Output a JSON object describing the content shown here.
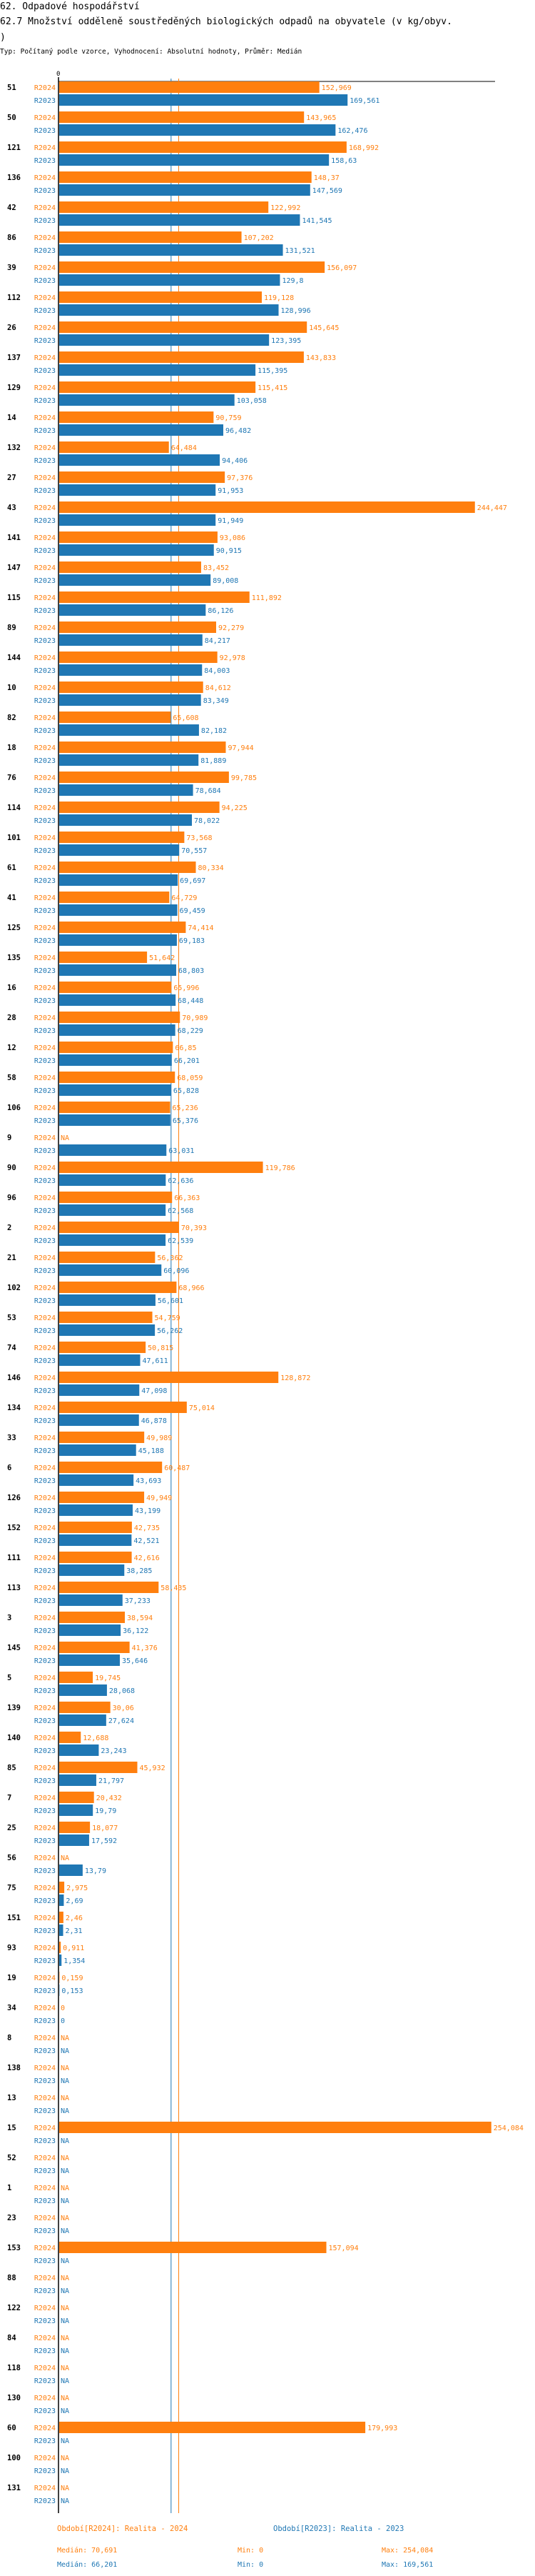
{
  "header": {
    "section": "62. Odpadové hospodářství",
    "title_line1": "62.7 Množství odděleně soustředěných biologických odpadů na obyvatele (v kg/obyv.",
    "title_line2": ")",
    "subtitle": "Typ: Počítaný podle vzorce, Vyhodnocení: Absolutní hodnoty, Průměr: Medián"
  },
  "colors": {
    "r2024": "#ff7f0e",
    "r2023": "#1f77b4"
  },
  "chart_data": {
    "type": "bar",
    "orientation": "horizontal",
    "axis_zero_label": "0",
    "series_labels": [
      "R2024",
      "R2023"
    ],
    "na_label": "NA",
    "categories": [
      "51",
      "50",
      "121",
      "136",
      "42",
      "86",
      "39",
      "112",
      "26",
      "137",
      "129",
      "14",
      "132",
      "27",
      "43",
      "141",
      "147",
      "115",
      "89",
      "144",
      "10",
      "82",
      "18",
      "76",
      "114",
      "101",
      "61",
      "41",
      "125",
      "135",
      "16",
      "28",
      "12",
      "58",
      "106",
      "9",
      "90",
      "96",
      "2",
      "21",
      "102",
      "53",
      "74",
      "146",
      "134",
      "33",
      "6",
      "126",
      "152",
      "111",
      "113",
      "3",
      "145",
      "5",
      "139",
      "140",
      "85",
      "7",
      "25",
      "56",
      "75",
      "151",
      "93",
      "19",
      "34",
      "8",
      "138",
      "13",
      "15",
      "52",
      "1",
      "23",
      "153",
      "88",
      "122",
      "84",
      "118",
      "130",
      "60",
      "100",
      "131"
    ],
    "series": [
      {
        "name": "R2024",
        "values": [
          "152,969",
          "143,965",
          "168,992",
          "148,37",
          "122,992",
          "107,202",
          "156,097",
          "119,128",
          "145,645",
          "143,833",
          "115,415",
          "90,759",
          "64,484",
          "97,376",
          "244,447",
          "93,086",
          "83,452",
          "111,892",
          "92,279",
          "92,978",
          "84,612",
          "65,608",
          "97,944",
          "99,785",
          "94,225",
          "73,568",
          "80,334",
          "64,729",
          "74,414",
          "51,642",
          "65,996",
          "70,989",
          "66,85",
          "68,059",
          "65,236",
          null,
          "119,786",
          "66,363",
          "70,393",
          "56,362",
          "68,966",
          "54,759",
          "50,815",
          "128,872",
          "75,014",
          "49,989",
          "60,487",
          "49,949",
          "42,735",
          "42,616",
          "58,435",
          "38,594",
          "41,376",
          "19,745",
          "30,06",
          "12,688",
          "45,932",
          "20,432",
          "18,077",
          null,
          "2,975",
          "2,46",
          "0,911",
          "0,159",
          "0",
          null,
          null,
          null,
          "254,084",
          null,
          null,
          null,
          "157,094",
          null,
          null,
          null,
          null,
          null,
          "179,993",
          null,
          null
        ]
      },
      {
        "name": "R2023",
        "values": [
          "169,561",
          "162,476",
          "158,63",
          "147,569",
          "141,545",
          "131,521",
          "129,8",
          "128,996",
          "123,395",
          "115,395",
          "103,058",
          "96,482",
          "94,406",
          "91,953",
          "91,949",
          "90,915",
          "89,008",
          "86,126",
          "84,217",
          "84,003",
          "83,349",
          "82,182",
          "81,889",
          "78,684",
          "78,022",
          "70,557",
          "69,697",
          "69,459",
          "69,183",
          "68,803",
          "68,448",
          "68,229",
          "66,201",
          "65,828",
          "65,376",
          "63,031",
          "62,636",
          "62,568",
          "62,539",
          "60,096",
          "56,601",
          "56,262",
          "47,611",
          "47,098",
          "46,878",
          "45,188",
          "43,693",
          "43,199",
          "42,521",
          "38,285",
          "37,233",
          "36,122",
          "35,646",
          "28,068",
          "27,624",
          "23,243",
          "21,797",
          "19,79",
          "17,592",
          "13,79",
          "2,69",
          "2,31",
          "1,354",
          "0,153",
          "0",
          null,
          null,
          null,
          null,
          null,
          null,
          null,
          null,
          null,
          null,
          null,
          null,
          null,
          null,
          null,
          null
        ]
      }
    ],
    "medians": {
      "R2024": 70.691,
      "R2023": 66.201
    },
    "xlim": [
      0,
      257
    ]
  },
  "legend": {
    "r2024": "Období[R2024]: Realita - 2024",
    "r2023": "Období[R2023]: Realita - 2023",
    "r2024_median": "Medián: 70,691",
    "r2024_min": "Min: 0",
    "r2024_max": "Max: 254,084",
    "r2023_median": "Medián: 66,201",
    "r2023_min": "Min: 0",
    "r2023_max": "Max: 169,561"
  }
}
